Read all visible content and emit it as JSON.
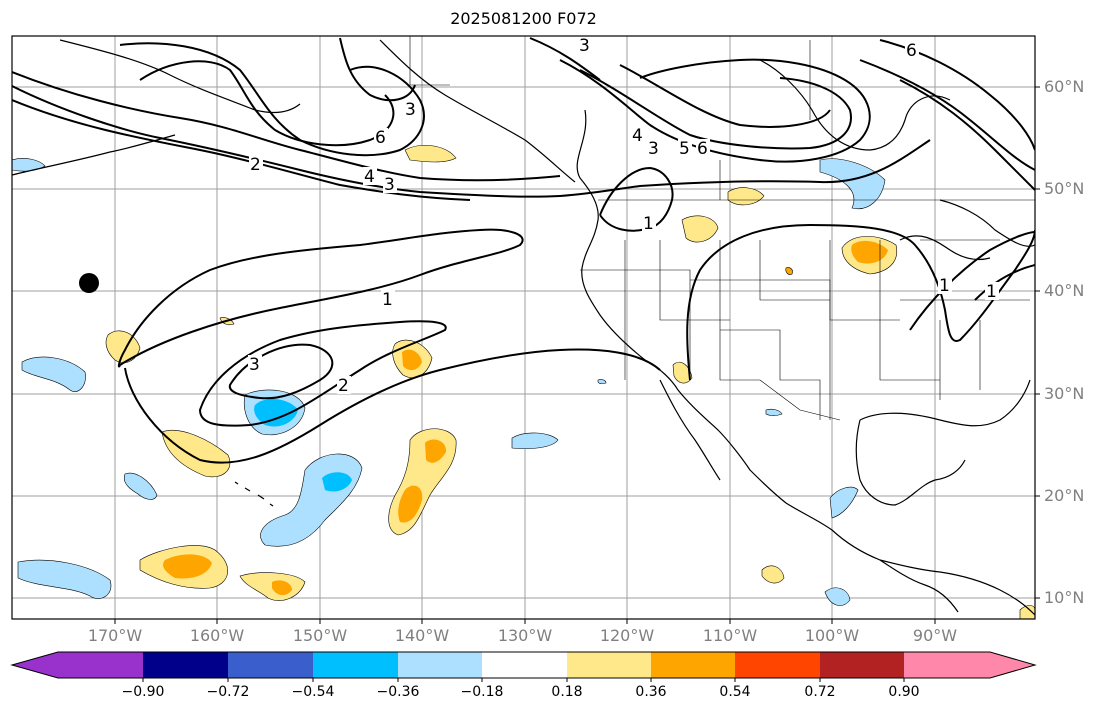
{
  "title": "2025081200 F072",
  "lat_labels": [
    "60°N",
    "50°N",
    "40°N",
    "30°N",
    "20°N",
    "10°N"
  ],
  "lon_labels": [
    "170°W",
    "160°W",
    "150°W",
    "140°W",
    "130°W",
    "120°W",
    "110°W",
    "100°W",
    "90°W"
  ],
  "contour_labels": [
    "3",
    "6",
    "2",
    "4",
    "3",
    "3",
    "6",
    "4",
    "3",
    "5",
    "6",
    "1",
    "1",
    "3",
    "2",
    "1",
    "1"
  ],
  "colorbar": {
    "ticks": [
      "−0.90",
      "−0.72",
      "−0.54",
      "−0.36",
      "−0.18",
      "0.18",
      "0.36",
      "0.54",
      "0.72",
      "0.90"
    ],
    "colors": [
      "#9932CC",
      "#00008B",
      "#3A5FCD",
      "#00BFFF",
      "#ADE0FF",
      "#FFFFFF",
      "#FFE88A",
      "#FFA500",
      "#FF4500",
      "#B22222",
      "#FF88AA"
    ]
  },
  "colors": {
    "neg_light": "#ADE0FF",
    "neg_mid": "#00BFFF",
    "pos_light": "#FFE88A",
    "pos_mid": "#FFA500",
    "contour": "#000000",
    "grid": "#888888"
  }
}
